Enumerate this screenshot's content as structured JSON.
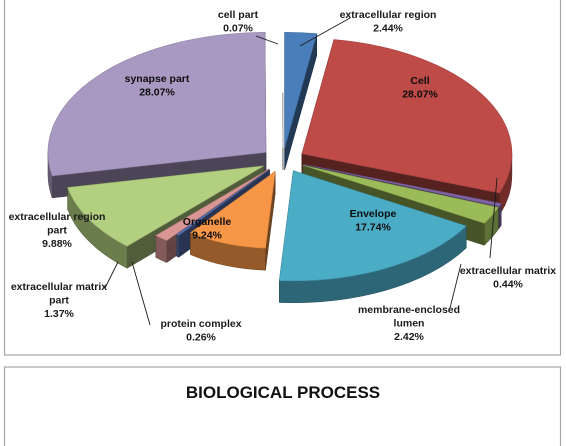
{
  "chart_data": [
    {
      "type": "pie",
      "title": "",
      "labels": [
        "extracellular region",
        "Cell",
        "extracellular matrix",
        "membrane-enclosed lumen",
        "Envelope",
        "Organelle",
        "protein complex",
        "extracellular matrix part",
        "extracellular region part",
        "synapse part",
        "cell part"
      ],
      "values": [
        2.44,
        28.07,
        0.44,
        2.42,
        17.74,
        9.24,
        0.26,
        1.37,
        9.88,
        28.07,
        0.07
      ],
      "value_labels": [
        "2.44%",
        "28.07%",
        "0.44%",
        "2.42%",
        "17.74%",
        "9.24%",
        "0.26%",
        "1.37%",
        "9.88%",
        "28.07%",
        "0.07%"
      ],
      "label_lines": [
        [
          "extracellular region"
        ],
        [
          "Cell"
        ],
        [
          "extracellular matrix"
        ],
        [
          "membrane-enclosed",
          "lumen"
        ],
        [
          "Envelope"
        ],
        [
          "Organelle"
        ],
        [
          "protein complex"
        ],
        [
          "extracellular matrix",
          "part"
        ],
        [
          "extracellular region",
          "part"
        ],
        [
          "synapse part"
        ],
        [
          "cell part"
        ]
      ],
      "colors": [
        "#4a7ebb",
        "#be4b48",
        "#7f63a2",
        "#9bbb59",
        "#4bacc6",
        "#f79646",
        "#5b74b6",
        "#d99694",
        "#b3cf80",
        "#a899c2",
        "#dfe7f2"
      ],
      "style": "3d-exploded",
      "legend": "none"
    },
    {
      "type": "pie",
      "title": "BIOLOGICAL PROCESS"
    }
  ]
}
